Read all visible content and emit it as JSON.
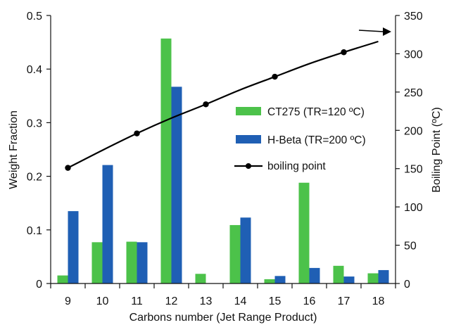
{
  "chart_data": {
    "type": "bar",
    "title": "",
    "xlabel": "Carbons number (Jet Range Product)",
    "ylabel": "Weight Fraction",
    "y2label": "Boiling Point (ºC)",
    "categories": [
      "9",
      "10",
      "11",
      "12",
      "13",
      "14",
      "15",
      "16",
      "17",
      "18"
    ],
    "ylim": [
      0,
      0.5
    ],
    "yticks": [
      "0",
      "0.1",
      "0.2",
      "0.3",
      "0.4",
      "0.5"
    ],
    "y2lim": [
      0,
      350
    ],
    "y2ticks": [
      "0",
      "50",
      "100",
      "150",
      "200",
      "250",
      "300",
      "350"
    ],
    "grid": false,
    "legend_position": "right",
    "series": [
      {
        "name": "CT275 (TR=120 ºC)",
        "type": "bar",
        "color": "#4cc24a",
        "values": [
          0.015,
          0.077,
          0.078,
          0.457,
          0.018,
          0.109,
          0.008,
          0.188,
          0.033,
          0.019
        ]
      },
      {
        "name": "H-Beta (TR=200 ºC)",
        "type": "bar",
        "color": "#1f5fb4",
        "values": [
          0.135,
          0.221,
          0.077,
          0.367,
          0.0,
          0.123,
          0.014,
          0.029,
          0.013,
          0.025
        ]
      },
      {
        "name": "boiling point",
        "type": "line",
        "axis": "y2",
        "color": "#000000",
        "points": [
          {
            "x": "9",
            "y": 151
          },
          {
            "x": "11",
            "y": 196
          },
          {
            "x": "13",
            "y": 234
          },
          {
            "x": "15",
            "y": 270
          },
          {
            "x": "17",
            "y": 302
          }
        ],
        "curve": [
          {
            "x": "9",
            "y": 151
          },
          {
            "x": "10",
            "y": 174
          },
          {
            "x": "11",
            "y": 196
          },
          {
            "x": "12",
            "y": 216
          },
          {
            "x": "13",
            "y": 234
          },
          {
            "x": "14",
            "y": 253
          },
          {
            "x": "15",
            "y": 270
          },
          {
            "x": "16",
            "y": 287
          },
          {
            "x": "17",
            "y": 302
          },
          {
            "x": "18",
            "y": 316
          }
        ]
      }
    ]
  }
}
